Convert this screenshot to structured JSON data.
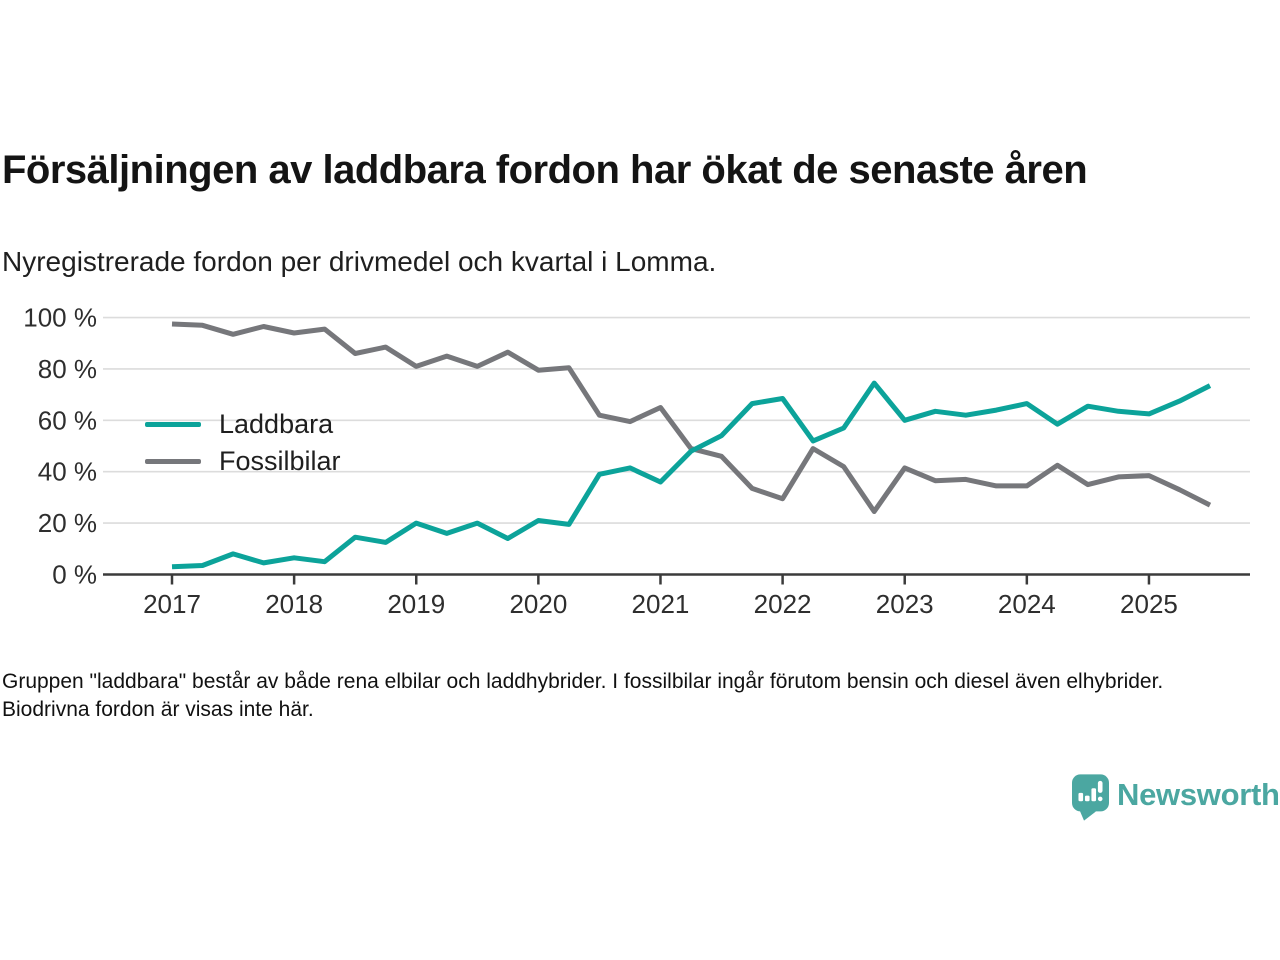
{
  "header": {
    "title": "Försäljningen av laddbara fordon har ökat de senaste åren",
    "subtitle": "Nyregistrerade fordon per drivmedel och kvartal i Lomma."
  },
  "footnote": "Gruppen \"laddbara\" består av både rena elbilar och laddhybrider. I fossilbilar ingår förutom bensin och diesel även elhybrider. Biodrivna fordon är visas inte här.",
  "branding": {
    "wordmark": "Newsworthy",
    "logo_icon": "speech-bubble-bar-chart-exclamation",
    "color": "#4BA7A1"
  },
  "colors": {
    "laddbara_line": "#0CA39A",
    "fossilbilar_line": "#76777B",
    "gridline": "#DCDCDC",
    "axis": "#3B3B3B",
    "text": "#1F1F1F"
  },
  "chart_data": {
    "type": "line",
    "x_unit": "quarter",
    "x_range": [
      "2017 Q1",
      "2025 Q3"
    ],
    "x_tick_labels": [
      "2017",
      "2018",
      "2019",
      "2020",
      "2021",
      "2022",
      "2023",
      "2024",
      "2025"
    ],
    "yticks": [
      0,
      20,
      40,
      60,
      80,
      100
    ],
    "ytick_suffix": " %",
    "ylim": [
      0,
      100
    ],
    "grid": true,
    "legend_position": "inside-left",
    "series": [
      {
        "name": "Laddbara",
        "color": "#0CA39A",
        "values": [
          3,
          3.5,
          8,
          4.5,
          6.5,
          5,
          14.5,
          12.5,
          20,
          16,
          20,
          14,
          21,
          19.5,
          39,
          41.5,
          36,
          48,
          54,
          66.5,
          68.5,
          52,
          57,
          74.5,
          60,
          63.5,
          62,
          64,
          66.5,
          58.5,
          65.5,
          63.5,
          62.5,
          67.5,
          73.5
        ]
      },
      {
        "name": "Fossilbilar",
        "color": "#76777B",
        "values": [
          97.5,
          97,
          93.5,
          96.5,
          94,
          95.5,
          86,
          88.5,
          81,
          85,
          81,
          86.5,
          79.5,
          80.5,
          62,
          59.5,
          65,
          49,
          46,
          33.5,
          29.5,
          49,
          42,
          24.5,
          41.5,
          36.5,
          37,
          34.5,
          34.5,
          42.5,
          35,
          38,
          38.5,
          33,
          27
        ]
      }
    ]
  }
}
